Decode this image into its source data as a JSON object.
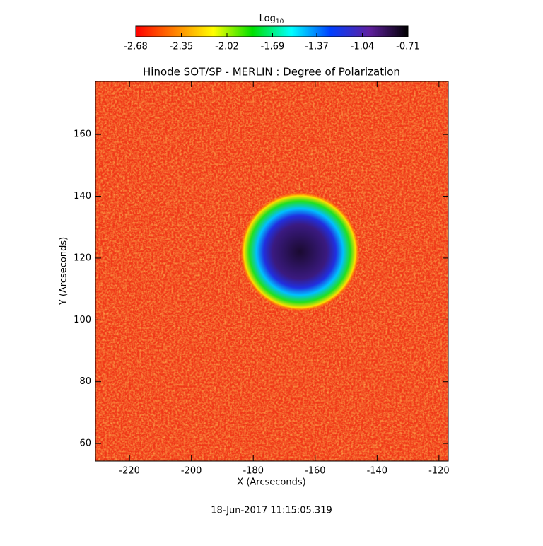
{
  "chart_data": {
    "type": "heatmap",
    "title": "Hinode SOT/SP - MERLIN : Degree of Polarization",
    "x_label": "X (Arcseconds)",
    "y_label": "Y (Arcseconds)",
    "xlim": [
      -231,
      -117
    ],
    "ylim": [
      54.3,
      177.2
    ],
    "xticks": [
      -220,
      -200,
      -180,
      -160,
      -140,
      -120
    ],
    "yticks": [
      60,
      80,
      100,
      120,
      140,
      160
    ],
    "colorbar": {
      "label": "Log",
      "label_sub": "10",
      "lim": [
        -2.68,
        -0.71
      ],
      "ticks": [
        -2.68,
        -2.35,
        -2.02,
        -1.69,
        -1.37,
        -1.04,
        -0.71
      ],
      "colormap": [
        "#ff0000",
        "#ff8000",
        "#ffff00",
        "#00e000",
        "#00ffff",
        "#0040ff",
        "#6020a0",
        "#000000"
      ]
    },
    "annotation": "18-Jun-2017 11:15:05.319"
  }
}
